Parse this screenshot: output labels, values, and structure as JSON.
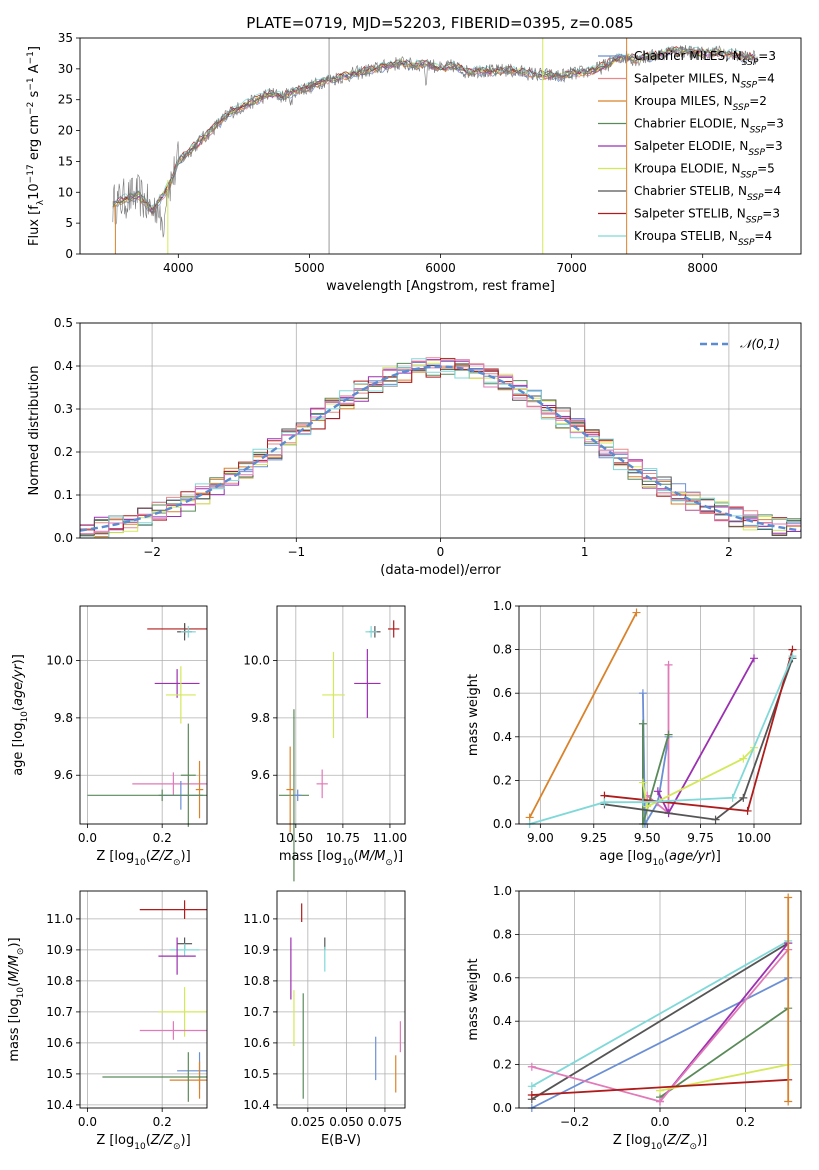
{
  "figure": {
    "title": "PLATE=0719, MJD=52203, FIBERID=0395, z=0.085"
  },
  "colors": {
    "Chabrier MILES": "#6b8fd4",
    "Salpeter MILES": "#e88a8a",
    "Kroupa MILES": "#d9822b",
    "Chabrier ELODIE": "#5a8a5a",
    "Salpeter ELODIE": "#9b30b0",
    "Kroupa ELODIE": "#d4e85a",
    "Chabrier STELIB": "#555555",
    "Salpeter STELIB": "#b01c1c",
    "Kroupa STELIB": "#80d8d8",
    "pink": "#e07ab8",
    "dashed": "#5b8bd0"
  },
  "chart_data": [
    {
      "id": "spectrum",
      "type": "line",
      "title": "PLATE=0719, MJD=52203, FIBERID=0395, z=0.085",
      "xlabel": "wavelength [Angstrom, rest frame]",
      "ylabel": "Flux [f_λ 10^-17 erg cm^-2 s^-1 A^-1]",
      "xlim": [
        3250,
        8750
      ],
      "ylim": [
        0,
        35
      ],
      "xticks": [
        4000,
        5000,
        6000,
        7000,
        8000
      ],
      "yticks": [
        0,
        5,
        10,
        15,
        20,
        25,
        30,
        35
      ],
      "grid": false,
      "legend": "top-right",
      "continuum": {
        "x": [
          3500,
          3600,
          3700,
          3800,
          3900,
          3950,
          4000,
          4100,
          4200,
          4300,
          4400,
          4500,
          4600,
          4700,
          4800,
          4900,
          5000,
          5100,
          5200,
          5300,
          5400,
          5500,
          5600,
          5700,
          5800,
          5900,
          6000,
          6100,
          6200,
          6300,
          6400,
          6500,
          6600,
          6700,
          6800,
          6900,
          7000,
          7100,
          7200,
          7300,
          7400,
          7500,
          7600,
          7700,
          7800,
          7900,
          8000,
          8100,
          8200,
          8300,
          8400
        ],
        "y": [
          8,
          9,
          9.5,
          7,
          10,
          12,
          15,
          17,
          19,
          21,
          23,
          24,
          25,
          26,
          25.5,
          26.5,
          27,
          28,
          28.5,
          29,
          29.5,
          30,
          30.5,
          31,
          30.5,
          31,
          30,
          30.5,
          29.5,
          29.8,
          29.5,
          29.8,
          29.5,
          29.2,
          29,
          28.8,
          29.2,
          29.5,
          30,
          31,
          32,
          31.5,
          32,
          32.5,
          33,
          32.8,
          32.5,
          32.7,
          32.4,
          32,
          31.8
        ]
      },
      "series": [
        {
          "name": "Chabrier MILES, N_SSP=3",
          "color_key": "Chabrier MILES"
        },
        {
          "name": "Salpeter MILES, N_SSP=4",
          "color_key": "Salpeter MILES"
        },
        {
          "name": "Kroupa MILES, N_SSP=2",
          "color_key": "Kroupa MILES"
        },
        {
          "name": "Chabrier ELODIE, N_SSP=3",
          "color_key": "Chabrier ELODIE"
        },
        {
          "name": "Salpeter ELODIE, N_SSP=3",
          "color_key": "Salpeter ELODIE"
        },
        {
          "name": "Kroupa ELODIE, N_SSP=5",
          "color_key": "Kroupa ELODIE"
        },
        {
          "name": "Chabrier STELIB, N_SSP=4",
          "color_key": "Chabrier STELIB"
        },
        {
          "name": "Salpeter STELIB, N_SSP=3",
          "color_key": "Salpeter STELIB"
        },
        {
          "name": "Kroupa STELIB, N_SSP=4",
          "color_key": "Kroupa STELIB"
        }
      ],
      "vertical_lines": [
        {
          "x": 5150,
          "color": "#999999"
        },
        {
          "x": 6780,
          "color": "#d4e85a"
        },
        {
          "x": 7420,
          "color": "#d9822b"
        }
      ]
    },
    {
      "id": "residuals",
      "type": "histogram",
      "xlabel": "(data-model)/error",
      "ylabel": "Normed distribution",
      "xlim": [
        -2.5,
        2.5
      ],
      "ylim": [
        0,
        0.5
      ],
      "xticks": [
        -2,
        -1,
        0,
        1,
        2
      ],
      "yticks": [
        0.0,
        0.1,
        0.2,
        0.3,
        0.4,
        0.5
      ],
      "grid": true,
      "legend": "top-right",
      "reference_curve": {
        "name": "𝒩(0,1)",
        "style": "dashed"
      },
      "bin_width": 0.1
    },
    {
      "id": "age_vs_Z",
      "type": "errorbar",
      "xlabel": "Z [log10(Z/Z☉)]",
      "ylabel": "age [log10(age/yr)]",
      "xlim": [
        -0.02,
        0.32
      ],
      "ylim": [
        9.43,
        10.19
      ],
      "xticks": [
        0.0,
        0.2
      ],
      "yticks": [
        9.6,
        9.8,
        10.0
      ],
      "grid": true,
      "points": [
        {
          "c": "Salpeter STELIB",
          "x": 0.26,
          "xe": 0.1,
          "y": 10.11,
          "ye": 0.02
        },
        {
          "c": "Chabrier STELIB",
          "x": 0.26,
          "xe": 0.02,
          "y": 10.1,
          "ye": 0.03
        },
        {
          "c": "Kroupa STELIB",
          "x": 0.27,
          "xe": 0.02,
          "y": 10.1,
          "ye": 0.02
        },
        {
          "c": "Salpeter ELODIE",
          "x": 0.24,
          "xe": 0.06,
          "y": 9.92,
          "ye": 0.05
        },
        {
          "c": "Kroupa ELODIE",
          "x": 0.25,
          "xe": 0.04,
          "y": 9.88,
          "ye": 0.1
        },
        {
          "c": "pink",
          "x": 0.23,
          "xe": 0.11,
          "y": 9.57,
          "ye": 0.04
        },
        {
          "c": "Chabrier ELODIE",
          "x": 0.27,
          "xe": 0.02,
          "y": 9.6,
          "ye": 0.18
        },
        {
          "c": "Kroupa MILES",
          "x": 0.3,
          "xe": 0.01,
          "y": 9.55,
          "ye": 0.1
        },
        {
          "c": "Chabrier MILES",
          "x": 0.25,
          "xe": 0.06,
          "y": 9.53,
          "ye": 0.05
        },
        {
          "c": "Chabrier ELODIE",
          "x": 0.2,
          "xe": 0.2,
          "y": 9.53,
          "ye": 0.02
        }
      ]
    },
    {
      "id": "age_vs_mass",
      "type": "errorbar",
      "xlabel": "mass [log10(M/M☉)]",
      "ylabel": "",
      "xlim": [
        10.4,
        11.08
      ],
      "ylim": [
        9.43,
        10.19
      ],
      "xticks": [
        10.5,
        10.75,
        11.0
      ],
      "yticks": [
        9.6,
        9.8,
        10.0
      ],
      "grid": true,
      "points": [
        {
          "c": "Salpeter STELIB",
          "x": 11.02,
          "xe": 0.03,
          "y": 10.11,
          "ye": 0.03
        },
        {
          "c": "Chabrier STELIB",
          "x": 10.92,
          "xe": 0.03,
          "y": 10.1,
          "ye": 0.02
        },
        {
          "c": "Kroupa STELIB",
          "x": 10.9,
          "xe": 0.03,
          "y": 10.1,
          "ye": 0.02
        },
        {
          "c": "Salpeter ELODIE",
          "x": 10.88,
          "xe": 0.07,
          "y": 9.92,
          "ye": 0.12
        },
        {
          "c": "Kroupa ELODIE",
          "x": 10.7,
          "xe": 0.06,
          "y": 9.88,
          "ye": 0.15
        },
        {
          "c": "pink",
          "x": 10.64,
          "xe": 0.03,
          "y": 9.57,
          "ye": 0.05
        },
        {
          "c": "Chabrier ELODIE",
          "x": 10.49,
          "xe": 0.08,
          "y": 9.53,
          "ye": 0.3
        },
        {
          "c": "Kroupa MILES",
          "x": 10.47,
          "xe": 0.02,
          "y": 9.55,
          "ye": 0.15
        },
        {
          "c": "Chabrier MILES",
          "x": 10.51,
          "xe": 0.02,
          "y": 9.53,
          "ye": 0.02
        }
      ]
    },
    {
      "id": "weight_vs_age",
      "type": "line",
      "xlabel": "age [log10(age/yr)]",
      "ylabel": "mass weight",
      "xlim": [
        8.9,
        10.22
      ],
      "ylim": [
        0,
        1
      ],
      "xticks": [
        9.0,
        9.25,
        9.5,
        9.75,
        10.0
      ],
      "yticks": [
        0.0,
        0.2,
        0.4,
        0.6,
        0.8,
        1.0
      ],
      "grid": true,
      "series": [
        {
          "c": "Kroupa MILES",
          "x": [
            8.95,
            9.45
          ],
          "y": [
            0.03,
            0.97
          ]
        },
        {
          "c": "Chabrier MILES",
          "x": [
            9.48,
            9.49,
            9.55,
            9.6
          ],
          "y": [
            0.6,
            0.0,
            0.1,
            0.4
          ]
        },
        {
          "c": "pink",
          "x": [
            9.5,
            9.6,
            9.6
          ],
          "y": [
            0.13,
            0.05,
            0.73
          ]
        },
        {
          "c": "Chabrier ELODIE",
          "x": [
            9.48,
            9.48,
            9.6
          ],
          "y": [
            0.46,
            0.0,
            0.41
          ]
        },
        {
          "c": "Salpeter ELODIE",
          "x": [
            9.55,
            9.6,
            10.0
          ],
          "y": [
            0.15,
            0.05,
            0.76
          ]
        },
        {
          "c": "Kroupa ELODIE",
          "x": [
            9.48,
            9.5,
            9.95,
            10.0
          ],
          "y": [
            0.19,
            0.08,
            0.3,
            0.35
          ]
        },
        {
          "c": "Chabrier STELIB",
          "x": [
            9.3,
            9.82,
            9.95,
            10.18
          ],
          "y": [
            0.09,
            0.02,
            0.12,
            0.76
          ]
        },
        {
          "c": "Salpeter STELIB",
          "x": [
            9.3,
            9.97,
            10.18
          ],
          "y": [
            0.13,
            0.06,
            0.8
          ]
        },
        {
          "c": "Kroupa STELIB",
          "x": [
            8.95,
            9.3,
            9.48,
            9.9,
            10.18
          ],
          "y": [
            0.0,
            0.1,
            0.1,
            0.12,
            0.77
          ]
        }
      ]
    },
    {
      "id": "mass_vs_Z",
      "type": "errorbar",
      "xlabel": "Z [log10(Z/Z☉)]",
      "ylabel": "mass [log10(M/M☉)]",
      "xlim": [
        -0.02,
        0.32
      ],
      "ylim": [
        10.39,
        11.09
      ],
      "xticks": [
        0.0,
        0.2
      ],
      "yticks": [
        10.4,
        10.5,
        10.6,
        10.7,
        10.8,
        10.9,
        11.0
      ],
      "grid": true,
      "points": [
        {
          "c": "Salpeter STELIB",
          "x": 0.26,
          "xe": 0.12,
          "y": 11.03,
          "ye": 0.03
        },
        {
          "c": "Chabrier STELIB",
          "x": 0.26,
          "xe": 0.02,
          "y": 10.92,
          "ye": 0.02
        },
        {
          "c": "Kroupa STELIB",
          "x": 0.26,
          "xe": 0.04,
          "y": 10.9,
          "ye": 0.02
        },
        {
          "c": "Salpeter ELODIE",
          "x": 0.24,
          "xe": 0.05,
          "y": 10.88,
          "ye": 0.06
        },
        {
          "c": "Kroupa ELODIE",
          "x": 0.26,
          "xe": 0.07,
          "y": 10.7,
          "ye": 0.08
        },
        {
          "c": "pink",
          "x": 0.23,
          "xe": 0.09,
          "y": 10.64,
          "ye": 0.03
        },
        {
          "c": "Chabrier MILES",
          "x": 0.3,
          "xe": 0.06,
          "y": 10.51,
          "ye": 0.06
        },
        {
          "c": "Kroupa MILES",
          "x": 0.3,
          "xe": 0.08,
          "y": 10.48,
          "ye": 0.06
        },
        {
          "c": "Chabrier ELODIE",
          "x": 0.27,
          "xe": 0.23,
          "y": 10.49,
          "ye": 0.08
        }
      ]
    },
    {
      "id": "mass_vs_EBV",
      "type": "errorbar",
      "xlabel": "E(B-V)",
      "ylabel": "",
      "xlim": [
        0.005,
        0.088
      ],
      "ylim": [
        10.39,
        11.09
      ],
      "xticks": [
        0.025,
        0.05,
        0.075
      ],
      "xticklabels": [
        "0.025",
        "0.050",
        "0.075"
      ],
      "yticks": [
        10.4,
        10.5,
        10.6,
        10.7,
        10.8,
        10.9,
        11.0
      ],
      "grid": true,
      "points": [
        {
          "c": "Salpeter STELIB",
          "x": 0.021,
          "y": 11.02,
          "ye": 0.03
        },
        {
          "c": "Salpeter ELODIE",
          "x": 0.014,
          "y": 10.84,
          "ye": 0.1
        },
        {
          "c": "Kroupa ELODIE",
          "x": 0.016,
          "y": 10.68,
          "ye": 0.09
        },
        {
          "c": "Chabrier ELODIE",
          "x": 0.022,
          "y": 10.59,
          "ye": 0.17
        },
        {
          "c": "Chabrier STELIB",
          "x": 0.036,
          "y": 10.92,
          "ye": 0.02
        },
        {
          "c": "Kroupa STELIB",
          "x": 0.036,
          "y": 10.87,
          "ye": 0.04
        },
        {
          "c": "Chabrier MILES",
          "x": 0.069,
          "y": 10.55,
          "ye": 0.07
        },
        {
          "c": "Kroupa MILES",
          "x": 0.082,
          "y": 10.5,
          "ye": 0.06
        },
        {
          "c": "pink",
          "x": 0.085,
          "y": 10.62,
          "ye": 0.05
        }
      ]
    },
    {
      "id": "weight_vs_Z",
      "type": "line",
      "xlabel": "Z [log10(Z/Z☉)]",
      "ylabel": "mass weight",
      "xlim": [
        -0.33,
        0.33
      ],
      "ylim": [
        0,
        1
      ],
      "xticks": [
        -0.2,
        0.0,
        0.2
      ],
      "xticklabels": [
        "−0.2",
        "0.0",
        "0.2"
      ],
      "yticks": [
        0.0,
        0.2,
        0.4,
        0.6,
        0.8,
        1.0
      ],
      "grid": true,
      "series": [
        {
          "c": "Kroupa STELIB",
          "x": [
            -0.3,
            0.3
          ],
          "y": [
            0.1,
            0.77
          ]
        },
        {
          "c": "Chabrier STELIB",
          "x": [
            -0.3,
            0.3
          ],
          "y": [
            0.04,
            0.76
          ]
        },
        {
          "c": "Chabrier MILES",
          "x": [
            -0.3,
            0.3
          ],
          "y": [
            0.0,
            0.6
          ]
        },
        {
          "c": "Chabrier ELODIE",
          "x": [
            0.0,
            0.3
          ],
          "y": [
            0.05,
            0.46
          ]
        },
        {
          "c": "Salpeter ELODIE",
          "x": [
            0.0,
            0.3
          ],
          "y": [
            0.03,
            0.76
          ]
        },
        {
          "c": "pink",
          "x": [
            -0.3,
            0.0,
            0.3
          ],
          "y": [
            0.19,
            0.03,
            0.73
          ]
        },
        {
          "c": "Kroupa ELODIE",
          "x": [
            0.0,
            0.3
          ],
          "y": [
            0.08,
            0.2
          ]
        },
        {
          "c": "Salpeter STELIB",
          "x": [
            -0.3,
            0.3
          ],
          "y": [
            0.06,
            0.13
          ]
        },
        {
          "c": "Kroupa MILES",
          "x": [
            0.3,
            0.3
          ],
          "y": [
            0.03,
            0.97
          ]
        }
      ]
    }
  ]
}
